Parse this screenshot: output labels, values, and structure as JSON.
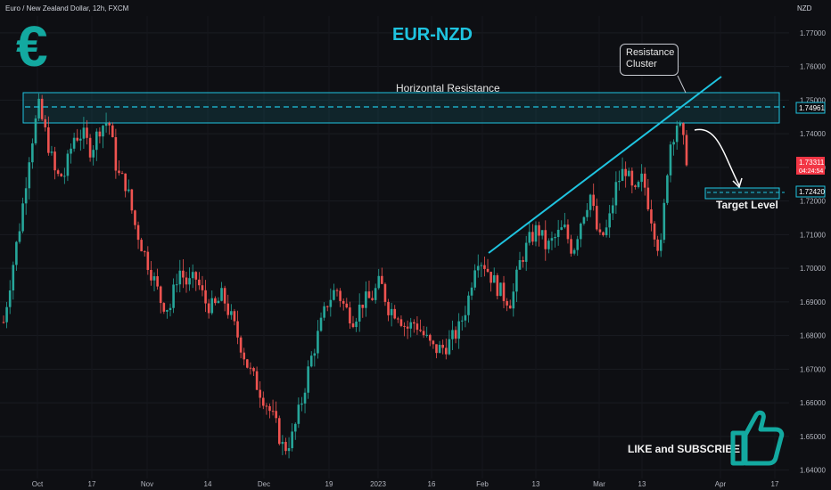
{
  "header": {
    "instrument": "Euro / New Zealand Dollar, 12h, FXCM",
    "currency": "NZD"
  },
  "annotations": {
    "title": "EUR-NZD",
    "currency_symbol": "€",
    "resistance_cluster_line1": "Resistance",
    "resistance_cluster_line2": "Cluster",
    "horizontal_resistance": "Horizontal Resistance",
    "target_level": "Target Level",
    "like_subscribe": "LIKE and SUBSCRIBE"
  },
  "colors": {
    "background": "#0e0f13",
    "bull": "#26a69a",
    "bear": "#ef5350",
    "accent": "#1fc4e0",
    "price_tag": "#f23645"
  },
  "chart_data": {
    "type": "candlestick",
    "y_axis_ticks": [
      "1.77000",
      "1.76000",
      "1.75000",
      "1.74000",
      "1.73000",
      "1.72000",
      "1.71000",
      "1.70000",
      "1.69000",
      "1.68000",
      "1.67000",
      "1.66000",
      "1.65000",
      "1.64000"
    ],
    "ylim": [
      1.6375,
      1.775
    ],
    "x_axis_ticks": [
      "Oct",
      "17",
      "Nov",
      "14",
      "Dec",
      "19",
      "2023",
      "16",
      "Feb",
      "13",
      "Mar",
      "13",
      "Apr",
      "17"
    ],
    "price_labels": {
      "resistance": "1.74961",
      "current": "1.73311",
      "countdown": "04:24:54",
      "target": "1.72420"
    },
    "levels": {
      "resistance_zone": [
        1.7453,
        1.7535
      ],
      "resistance_line": 1.74961,
      "target": 1.7242,
      "current": 1.73311
    },
    "trendline": {
      "from": [
        "Feb",
        1.705
      ],
      "to": [
        "Mar 22",
        1.758
      ]
    },
    "closes": [
      1.684,
      1.7,
      1.715,
      1.735,
      1.748,
      1.738,
      1.727,
      1.728,
      1.739,
      1.74,
      1.735,
      1.742,
      1.744,
      1.728,
      1.725,
      1.713,
      1.705,
      1.698,
      1.69,
      1.688,
      1.7,
      1.695,
      1.697,
      1.69,
      1.688,
      1.692,
      1.685,
      1.678,
      1.67,
      1.665,
      1.66,
      1.654,
      1.646,
      1.65,
      1.66,
      1.672,
      1.681,
      1.69,
      1.694,
      1.688,
      1.685,
      1.69,
      1.691,
      1.696,
      1.688,
      1.687,
      1.682,
      1.684,
      1.68,
      1.676,
      1.676,
      1.678,
      1.682,
      1.69,
      1.704,
      1.701,
      1.696,
      1.692,
      1.69,
      1.702,
      1.708,
      1.712,
      1.706,
      1.709,
      1.712,
      1.705,
      1.715,
      1.722,
      1.708,
      1.712,
      1.725,
      1.73,
      1.721,
      1.727,
      1.715,
      1.704,
      1.736,
      1.744,
      1.733
    ]
  }
}
